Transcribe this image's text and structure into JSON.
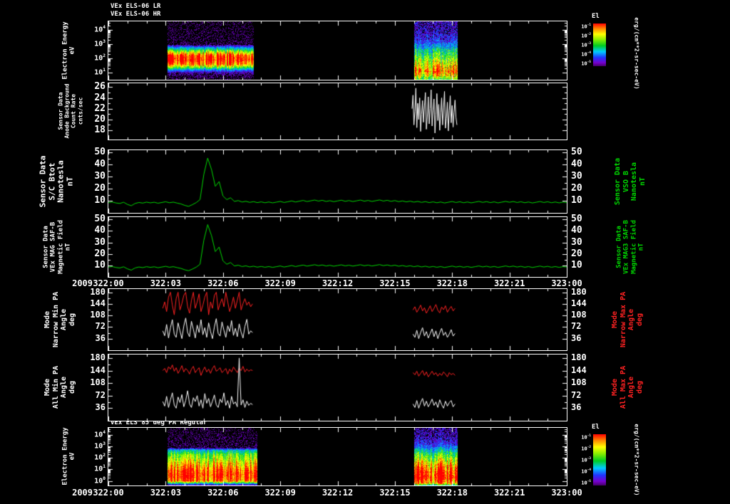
{
  "colors": {
    "background": "#000000",
    "axis": "#ffffff",
    "trace_green": "#00d800",
    "trace_white": "#ffffff",
    "trace_red": "#ff2222"
  },
  "time_axis": {
    "year": "2009",
    "tick_labels": [
      "322:00",
      "322:03",
      "322:06",
      "322:09",
      "322:12",
      "322:15",
      "322:18",
      "322:21",
      "323:00"
    ],
    "tick_hours": [
      0,
      3,
      6,
      9,
      12,
      15,
      18,
      21,
      24
    ],
    "minor_tick_hours": 1
  },
  "chart_data": [
    {
      "id": "els_lr_hr",
      "type": "spectrogram",
      "titles": [
        "VEx ELS-06 LR",
        "VEx ELS-06 HR"
      ],
      "ylabel": [
        "Electron Energy",
        "eV"
      ],
      "yticks": [
        "10^4",
        "10^3",
        "10^2",
        "10^1"
      ],
      "ytick_logs": [
        4,
        3,
        2,
        1
      ],
      "ylim_log": [
        0.5,
        4.6
      ],
      "colorbar": {
        "title": "El",
        "units": "erg/(cm**2-sr-sec-eV)",
        "tick_labels": [
          "10^-1",
          "10^-2",
          "10^-3",
          "10^-4",
          "10^-5"
        ]
      },
      "bursts": [
        {
          "t_start": 3.1,
          "t_end": 7.6,
          "noise": 0.18,
          "profile": [
            [
              4.6,
              0
            ],
            [
              3.0,
              0.02
            ],
            [
              2.8,
              0.3
            ],
            [
              2.5,
              0.65
            ],
            [
              2.2,
              0.95
            ],
            [
              1.9,
              1.0
            ],
            [
              1.6,
              0.85
            ],
            [
              1.4,
              0.6
            ],
            [
              1.2,
              0.3
            ],
            [
              1.0,
              0.08
            ],
            [
              0.5,
              0
            ]
          ]
        },
        {
          "t_start": 16.0,
          "t_end": 18.3,
          "noise": 0.3,
          "profile": [
            [
              4.6,
              0.1
            ],
            [
              4.0,
              0.12
            ],
            [
              3.4,
              0.18
            ],
            [
              3.0,
              0.3
            ],
            [
              2.6,
              0.45
            ],
            [
              2.2,
              0.55
            ],
            [
              1.8,
              0.68
            ],
            [
              1.4,
              0.8
            ],
            [
              1.1,
              0.9
            ],
            [
              0.9,
              0.8
            ],
            [
              0.5,
              0.55
            ]
          ]
        }
      ]
    },
    {
      "id": "anode_background",
      "type": "line",
      "ylabel": [
        "Sensor Data",
        "Anode Background",
        "Count Rate",
        "cnts/sec"
      ],
      "yticks": [
        26,
        24,
        22,
        20,
        18
      ],
      "ylim": [
        16.3,
        26.7
      ],
      "series": [
        {
          "name": "anode_count_rate",
          "color": "#ffffff",
          "segments": [
            {
              "t0": 15.9,
              "dt": 0.05,
              "values": [
                22.0,
                24.5,
                19.0,
                21.5,
                25.8,
                18.5,
                23.0,
                20.0,
                24.0,
                17.8,
                21.0,
                23.5,
                19.5,
                22.5,
                25.0,
                18.2,
                20.5,
                24.2,
                19.2,
                22.0,
                25.5,
                18.8,
                21.8,
                23.8,
                17.5,
                20.8,
                24.8,
                19.8,
                22.8,
                18.0,
                21.2,
                24.0,
                19.0,
                22.2,
                25.2,
                18.4,
                20.2,
                23.2,
                17.9,
                21.6,
                24.4,
                19.4,
                22.6,
                18.6,
                21.4,
                23.6,
                20.4,
                19.0
              ]
            }
          ]
        }
      ]
    },
    {
      "id": "sc_btot",
      "type": "line",
      "ylabel": [
        "Sensor Data",
        "S/C Btot",
        "Nanotesla",
        "nT"
      ],
      "ylabel_right": [
        "Sensor Data",
        "VSO B",
        "Nanotesla",
        "nT"
      ],
      "yticks": [
        50,
        40,
        30,
        20,
        10
      ],
      "ylim": [
        0,
        52
      ],
      "right_ticks": true,
      "series": [
        {
          "name": "b_total",
          "color": "#00d800",
          "segments": [
            {
              "t0": 0,
              "dt": 0.2,
              "values": [
                8.5,
                9.0,
                8.2,
                7.8,
                8.8,
                7.0,
                5.9,
                7.8,
                8.6,
                8.1,
                8.9,
                8.3,
                8.8,
                8.0,
                8.6,
                9.2,
                8.4,
                8.9,
                8.1,
                7.4,
                6.2,
                5.4,
                6.8,
                8.5,
                11.0,
                32.0,
                45.5,
                36.0,
                22.0,
                26.0,
                14.0,
                11.0,
                12.5,
                9.5,
                10.2,
                9.0,
                9.6,
                8.7,
                9.3,
                8.5,
                9.1,
                8.4,
                9.0,
                8.3,
                8.9,
                9.5,
                8.6,
                9.2,
                9.9,
                9.0,
                9.7,
                10.3,
                9.4,
                10.0,
                10.6,
                9.8,
                10.4,
                9.5,
                10.1,
                9.3,
                9.9,
                10.5,
                9.6,
                10.2,
                9.4,
                10.0,
                10.6,
                9.7,
                10.3,
                9.5,
                10.1,
                10.7,
                9.8,
                10.4,
                9.6,
                10.2,
                9.3,
                9.9,
                9.1,
                9.7,
                8.9,
                9.5,
                8.7,
                9.3,
                8.5,
                9.1,
                8.4,
                9.0,
                8.2,
                8.8,
                9.4,
                8.6,
                9.2,
                8.4,
                9.0,
                8.3,
                8.9,
                9.5,
                8.7,
                9.3,
                8.5,
                9.1,
                8.3,
                8.9,
                9.5,
                8.8,
                9.4,
                8.6,
                9.2,
                8.4,
                9.0,
                8.2,
                8.8,
                9.4,
                8.6,
                9.2,
                8.4,
                9.0,
                8.3,
                8.9,
                8.6
              ]
            }
          ]
        }
      ]
    },
    {
      "id": "vex_mag",
      "type": "line",
      "ylabel": [
        "Sensor Data",
        "VEx MAG SAF-B",
        "Magnetic Field",
        "nT"
      ],
      "ylabel_right": [
        "Sensor Data",
        "VEx MAG3 SAF-B",
        "Magnetic Field",
        "nT"
      ],
      "yticks": [
        50,
        40,
        30,
        20,
        10
      ],
      "ylim": [
        0,
        52
      ],
      "right_ticks": true,
      "series_ref": "sc_btot",
      "xaxis_labels": true
    },
    {
      "id": "narrow_pa",
      "type": "line",
      "ylabel": [
        "Mode",
        "Narrow Min PA",
        "Angle",
        "deg"
      ],
      "ylabel_right": [
        "Mode",
        "Narrow Max PA",
        "Angle",
        "deg"
      ],
      "yticks": [
        180,
        144,
        108,
        72,
        36
      ],
      "ylim": [
        0,
        190
      ],
      "right_ticks": true,
      "series": [
        {
          "name": "narrow_max_pa",
          "color": "#ff2222",
          "segments": [
            {
              "t0": 2.85,
              "dt": 0.1,
              "values": [
                130,
                150,
                120,
                165,
                180,
                140,
                110,
                160,
                180,
                125,
                145,
                170,
                180,
                135,
                115,
                155,
                180,
                130,
                150,
                175,
                120,
                140,
                165,
                180,
                110,
                150,
                130,
                170,
                180,
                125,
                145,
                160,
                135,
                180,
                150,
                120,
                140,
                165,
                130,
                155,
                180,
                125,
                145,
                160,
                140,
                150,
                135,
                144
              ]
            },
            {
              "t0": 15.95,
              "dt": 0.1,
              "values": [
                125,
                135,
                118,
                128,
                140,
                122,
                132,
                115,
                126,
                138,
                120,
                130,
                142,
                124,
                116,
                134,
                126,
                138,
                118,
                128,
                136,
                122,
                130
              ]
            }
          ]
        },
        {
          "name": "narrow_min_pa",
          "color": "#ffffff",
          "segments": [
            {
              "t0": 2.85,
              "dt": 0.1,
              "values": [
                60,
                45,
                80,
                38,
                70,
                95,
                50,
                40,
                85,
                60,
                36,
                75,
                100,
                55,
                42,
                90,
                65,
                38,
                78,
                55,
                95,
                48,
                70,
                40,
                85,
                58,
                36,
                72,
                98,
                52,
                44,
                88,
                62,
                40,
                76,
                58,
                92,
                46,
                68,
                42,
                82,
                56,
                38,
                74,
                96,
                50,
                60,
                55
              ]
            },
            {
              "t0": 15.95,
              "dt": 0.1,
              "values": [
                50,
                40,
                62,
                36,
                55,
                70,
                44,
                58,
                38,
                52,
                66,
                42,
                60,
                36,
                54,
                68,
                46,
                56,
                40,
                50,
                64,
                44,
                52
              ]
            }
          ]
        }
      ]
    },
    {
      "id": "all_pa",
      "type": "line",
      "ylabel": [
        "Mode",
        "All Min PA",
        "Angle",
        "deg"
      ],
      "ylabel_right": [
        "Mode",
        "All Max PA",
        "Angle",
        "deg"
      ],
      "yticks": [
        180,
        144,
        108,
        72,
        36
      ],
      "ylim": [
        0,
        190
      ],
      "right_ticks": true,
      "series": [
        {
          "name": "all_max_pa",
          "color": "#ff2222",
          "segments": [
            {
              "t0": 2.85,
              "dt": 0.1,
              "values": [
                144,
                150,
                138,
                155,
                148,
                160,
                142,
                152,
                136,
                146,
                158,
                140,
                150,
                144,
                134,
                148,
                156,
                138,
                146,
                152,
                130,
                144,
                154,
                140,
                148,
                136,
                150,
                158,
                142,
                146,
                152,
                138,
                144,
                150,
                134,
                148,
                140,
                154,
                146,
                138,
                150,
                144,
                156,
                140,
                148,
                142,
                146,
                144
              ]
            },
            {
              "t0": 15.95,
              "dt": 0.1,
              "values": [
                138,
                132,
                142,
                128,
                136,
                144,
                130,
                140,
                126,
                134,
                142,
                132,
                138,
                128,
                136,
                130,
                140,
                134,
                126,
                138,
                132,
                136,
                130
              ]
            }
          ]
        },
        {
          "name": "all_min_pa",
          "color": "#ffffff",
          "segments": [
            {
              "t0": 2.85,
              "dt": 0.1,
              "values": [
                55,
                42,
                70,
                38,
                60,
                80,
                45,
                36,
                68,
                52,
                75,
                40,
                58,
                86,
                48,
                38,
                66,
                55,
                72,
                42,
                60,
                36,
                78,
                50,
                64,
                40,
                56,
                74,
                46,
                38,
                62,
                52,
                80,
                44,
                58,
                36,
                70,
                48,
                54,
                40,
                180,
                45,
                60,
                38,
                56,
                44,
                50,
                46
              ]
            },
            {
              "t0": 15.95,
              "dt": 0.1,
              "values": [
                48,
                38,
                58,
                36,
                52,
                64,
                42,
                56,
                40,
                50,
                62,
                44,
                54,
                38,
                60,
                46,
                36,
                56,
                42,
                52,
                58,
                40,
                48
              ]
            }
          ]
        }
      ]
    },
    {
      "id": "els_85",
      "type": "spectrogram",
      "title": "VEx ELS 85 deg PA Regular",
      "ylabel": [
        "Electron Energy",
        "eV"
      ],
      "yticks": [
        "10^4",
        "10^3",
        "10^2",
        "10^1",
        "10^0"
      ],
      "ytick_logs": [
        4,
        3,
        2,
        1,
        0
      ],
      "ylim_log": [
        -0.4,
        4.6
      ],
      "colorbar": {
        "title": "El",
        "units": "erg/(cm**2-sr-sec-eV)",
        "tick_labels": [
          "10^-1",
          "10^-2",
          "10^-3",
          "10^-4",
          "10^-5"
        ]
      },
      "bursts": [
        {
          "t_start": 3.1,
          "t_end": 7.8,
          "noise": 0.2,
          "profile": [
            [
              4.6,
              0
            ],
            [
              2.9,
              0.03
            ],
            [
              2.7,
              0.4
            ],
            [
              2.3,
              0.6
            ],
            [
              1.8,
              0.72
            ],
            [
              1.3,
              0.85
            ],
            [
              0.9,
              0.95
            ],
            [
              0.5,
              1.0
            ],
            [
              0.0,
              0.9
            ],
            [
              -0.2,
              0.4
            ],
            [
              -0.4,
              0
            ]
          ]
        },
        {
          "t_start": 16.0,
          "t_end": 18.3,
          "noise": 0.28,
          "profile": [
            [
              4.6,
              0.08
            ],
            [
              3.8,
              0.12
            ],
            [
              3.2,
              0.2
            ],
            [
              2.8,
              0.35
            ],
            [
              2.4,
              0.5
            ],
            [
              2.0,
              0.62
            ],
            [
              1.6,
              0.75
            ],
            [
              1.2,
              0.85
            ],
            [
              0.8,
              0.95
            ],
            [
              0.3,
              1.0
            ],
            [
              -0.2,
              0.8
            ],
            [
              -0.4,
              0.3
            ]
          ]
        }
      ],
      "xaxis_labels": true
    }
  ]
}
